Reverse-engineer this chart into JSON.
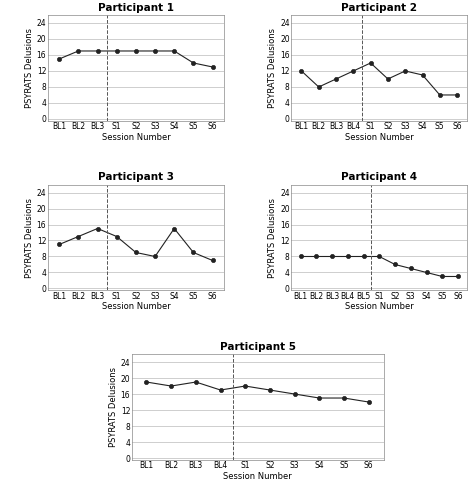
{
  "participants": [
    {
      "title": "Participant 1",
      "bl_labels": [
        "BL1",
        "BL2",
        "BL3"
      ],
      "s_labels": [
        "S1",
        "S2",
        "S3",
        "S4",
        "S5",
        "S6"
      ],
      "bl_values": [
        15,
        17,
        17
      ],
      "s_values": [
        17,
        17,
        17,
        17,
        14,
        13
      ]
    },
    {
      "title": "Participant 2",
      "bl_labels": [
        "BL1",
        "BL2",
        "BL3",
        "BL4"
      ],
      "s_labels": [
        "S1",
        "S2",
        "S3",
        "S4",
        "S5",
        "S6"
      ],
      "bl_values": [
        12,
        8,
        10,
        12
      ],
      "s_values": [
        14,
        10,
        12,
        11,
        6,
        6
      ]
    },
    {
      "title": "Participant 3",
      "bl_labels": [
        "BL1",
        "BL2",
        "BL3"
      ],
      "s_labels": [
        "S1",
        "S2",
        "S3",
        "S4",
        "S5",
        "S6"
      ],
      "bl_values": [
        11,
        13,
        15
      ],
      "s_values": [
        13,
        9,
        8,
        15,
        9,
        7
      ]
    },
    {
      "title": "Participant 4",
      "bl_labels": [
        "BL1",
        "BL2",
        "BL3",
        "BL4",
        "BL5"
      ],
      "s_labels": [
        "S1",
        "S2",
        "S3",
        "S4",
        "S5",
        "S6"
      ],
      "bl_values": [
        8,
        8,
        8,
        8,
        8
      ],
      "s_values": [
        8,
        6,
        5,
        4,
        3,
        3
      ]
    },
    {
      "title": "Participant 5",
      "bl_labels": [
        "BL1",
        "BL2",
        "BL3",
        "BL4"
      ],
      "s_labels": [
        "S1",
        "S2",
        "S3",
        "S4",
        "S5",
        "S6"
      ],
      "bl_values": [
        19,
        18,
        19,
        17
      ],
      "s_values": [
        18,
        17,
        16,
        15,
        15,
        14
      ]
    }
  ],
  "ylabel": "PSYRATS Delusions",
  "xlabel": "Session Number",
  "yticks": [
    0,
    4,
    8,
    12,
    16,
    20,
    24
  ],
  "ylim": [
    -0.5,
    26
  ],
  "line_color": "#222222",
  "marker": "o",
  "marker_size": 3,
  "bg_color": "#ffffff",
  "grid_color": "#bbbbbb",
  "title_fontsize": 7.5,
  "label_fontsize": 6,
  "tick_fontsize": 5.5
}
